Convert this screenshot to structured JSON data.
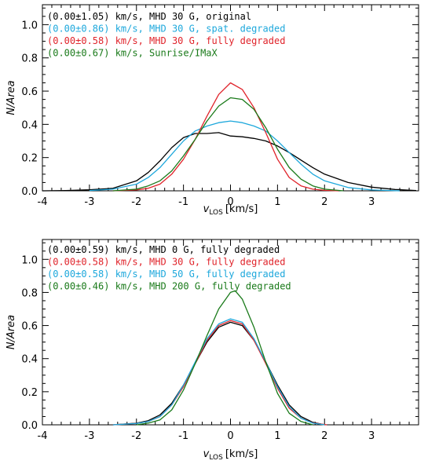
{
  "chart_data": [
    {
      "type": "line",
      "xlabel": "v_LOS [km/s]",
      "ylabel": "N/Area",
      "xlim": [
        -4,
        4
      ],
      "ylim": [
        0,
        1.12
      ],
      "xticks": [
        -4,
        -3,
        -2,
        -1,
        0,
        1,
        2,
        3
      ],
      "yticks": [
        0.0,
        0.2,
        0.4,
        0.6,
        0.8,
        1.0
      ],
      "xtick_labels": [
        "-4",
        "-3",
        "-2",
        "-1",
        "0",
        "1",
        "2",
        "3"
      ],
      "ytick_labels": [
        "0.0",
        "0.2",
        "0.4",
        "0.6",
        "0.8",
        "1.0"
      ],
      "grid": false,
      "legend_position": "top-left",
      "series": [
        {
          "name": "(0.00±1.05) km/s, MHD 30 G, original",
          "color": "#000000",
          "x": [
            -4.0,
            -3.5,
            -3.0,
            -2.5,
            -2.0,
            -1.75,
            -1.5,
            -1.25,
            -1.0,
            -0.75,
            -0.5,
            -0.25,
            0.0,
            0.25,
            0.5,
            0.75,
            1.0,
            1.25,
            1.5,
            1.75,
            2.0,
            2.5,
            3.0,
            3.5,
            3.95
          ],
          "y": [
            0.0,
            0.002,
            0.006,
            0.015,
            0.06,
            0.11,
            0.18,
            0.26,
            0.32,
            0.345,
            0.345,
            0.35,
            0.33,
            0.325,
            0.315,
            0.3,
            0.27,
            0.23,
            0.185,
            0.14,
            0.1,
            0.05,
            0.022,
            0.008,
            0.002
          ]
        },
        {
          "name": "(0.00±0.86) km/s, MHD 30 G, spat. degraded",
          "color": "#1ea8dc",
          "x": [
            -3.0,
            -2.5,
            -2.0,
            -1.75,
            -1.5,
            -1.25,
            -1.0,
            -0.75,
            -0.5,
            -0.25,
            0.0,
            0.25,
            0.5,
            0.75,
            1.0,
            1.25,
            1.5,
            1.75,
            2.0,
            2.5,
            3.0,
            3.6
          ],
          "y": [
            0.002,
            0.01,
            0.04,
            0.08,
            0.14,
            0.22,
            0.3,
            0.36,
            0.39,
            0.41,
            0.42,
            0.41,
            0.39,
            0.36,
            0.3,
            0.23,
            0.16,
            0.1,
            0.06,
            0.02,
            0.005,
            0.0
          ]
        },
        {
          "name": "(0.00±0.58) km/s, MHD 30 G, fully degraded",
          "color": "#e0242b",
          "x": [
            -2.5,
            -2.0,
            -1.75,
            -1.5,
            -1.25,
            -1.0,
            -0.75,
            -0.5,
            -0.25,
            0.0,
            0.25,
            0.5,
            0.75,
            1.0,
            1.25,
            1.5,
            1.75,
            2.0,
            2.3
          ],
          "y": [
            0.0,
            0.005,
            0.015,
            0.04,
            0.1,
            0.19,
            0.31,
            0.45,
            0.58,
            0.65,
            0.61,
            0.5,
            0.35,
            0.19,
            0.08,
            0.03,
            0.01,
            0.003,
            0.0
          ]
        },
        {
          "name": "(0.00±0.67) km/s, Sunrise/IMaX",
          "color": "#1a7a1a",
          "x": [
            -2.5,
            -2.0,
            -1.75,
            -1.5,
            -1.25,
            -1.0,
            -0.75,
            -0.5,
            -0.25,
            0.0,
            0.25,
            0.5,
            0.75,
            1.0,
            1.25,
            1.5,
            1.75,
            2.0,
            2.4
          ],
          "y": [
            0.0,
            0.01,
            0.03,
            0.06,
            0.12,
            0.21,
            0.31,
            0.42,
            0.51,
            0.56,
            0.55,
            0.49,
            0.38,
            0.25,
            0.14,
            0.07,
            0.03,
            0.01,
            0.0
          ]
        }
      ]
    },
    {
      "type": "line",
      "xlabel": "v_LOS [km/s]",
      "ylabel": "N/Area",
      "xlim": [
        -4,
        4
      ],
      "ylim": [
        0,
        1.12
      ],
      "xticks": [
        -4,
        -3,
        -2,
        -1,
        0,
        1,
        2,
        3
      ],
      "yticks": [
        0.0,
        0.2,
        0.4,
        0.6,
        0.8,
        1.0
      ],
      "xtick_labels": [
        "-4",
        "-3",
        "-2",
        "-1",
        "0",
        "1",
        "2",
        "3"
      ],
      "ytick_labels": [
        "0.0",
        "0.2",
        "0.4",
        "0.6",
        "0.8",
        "1.0"
      ],
      "grid": false,
      "legend_position": "top-left",
      "series": [
        {
          "name": "(0.00±0.59) km/s, MHD 0 G, fully degraded",
          "color": "#000000",
          "x": [
            -2.5,
            -2.0,
            -1.75,
            -1.5,
            -1.25,
            -1.0,
            -0.75,
            -0.5,
            -0.25,
            0.0,
            0.25,
            0.5,
            0.75,
            1.0,
            1.25,
            1.5,
            1.75,
            2.0
          ],
          "y": [
            0.0,
            0.01,
            0.025,
            0.06,
            0.13,
            0.24,
            0.37,
            0.5,
            0.59,
            0.62,
            0.6,
            0.51,
            0.38,
            0.24,
            0.12,
            0.05,
            0.015,
            0.0
          ]
        },
        {
          "name": "(0.00±0.58) km/s, MHD 30 G, fully degraded",
          "color": "#e0242b",
          "x": [
            -2.5,
            -2.0,
            -1.75,
            -1.5,
            -1.25,
            -1.0,
            -0.75,
            -0.5,
            -0.25,
            0.0,
            0.25,
            0.5,
            0.75,
            1.0,
            1.25,
            1.5,
            1.75,
            2.0,
            2.05
          ],
          "y": [
            0.0,
            0.008,
            0.02,
            0.05,
            0.12,
            0.23,
            0.37,
            0.51,
            0.6,
            0.63,
            0.61,
            0.51,
            0.37,
            0.22,
            0.1,
            0.04,
            0.012,
            0.002,
            0.0
          ]
        },
        {
          "name": "(0.00±0.58) km/s, MHD 50 G, fully degraded",
          "color": "#1ea8dc",
          "x": [
            -2.5,
            -2.0,
            -1.75,
            -1.5,
            -1.25,
            -1.0,
            -0.75,
            -0.5,
            -0.25,
            0.0,
            0.25,
            0.5,
            0.75,
            1.0,
            1.25,
            1.5,
            1.75,
            2.0
          ],
          "y": [
            0.0,
            0.008,
            0.02,
            0.05,
            0.12,
            0.24,
            0.38,
            0.52,
            0.61,
            0.64,
            0.62,
            0.52,
            0.38,
            0.23,
            0.11,
            0.04,
            0.01,
            0.0
          ]
        },
        {
          "name": "(0.00±0.46) km/s, MHD 200 G, fully degraded",
          "color": "#1a7a1a",
          "x": [
            -2.0,
            -1.75,
            -1.5,
            -1.25,
            -1.0,
            -0.75,
            -0.5,
            -0.25,
            0.0,
            0.1,
            0.25,
            0.5,
            0.75,
            1.0,
            1.25,
            1.5,
            1.75
          ],
          "y": [
            0.0,
            0.01,
            0.03,
            0.09,
            0.21,
            0.37,
            0.54,
            0.7,
            0.8,
            0.81,
            0.76,
            0.59,
            0.38,
            0.19,
            0.07,
            0.02,
            0.0
          ]
        }
      ]
    }
  ]
}
